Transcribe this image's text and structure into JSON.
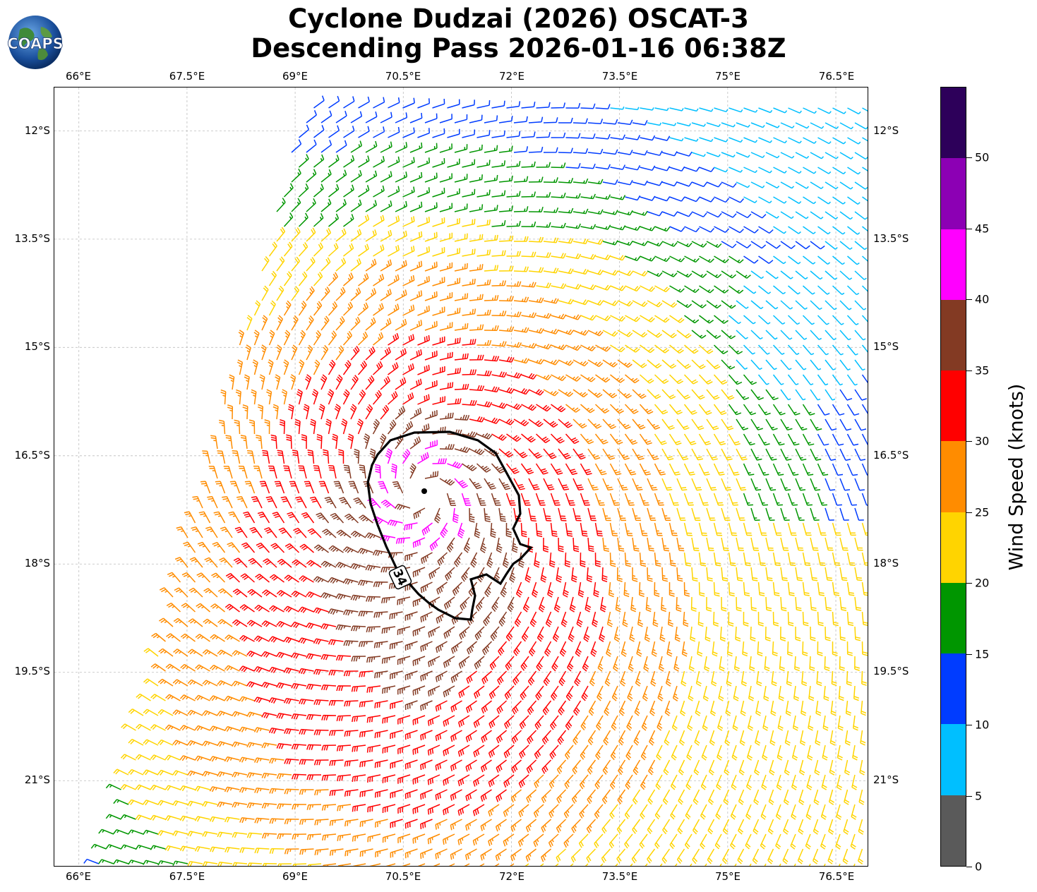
{
  "title": {
    "line1": "Cyclone Dudzai (2026) OSCAT-3",
    "line2": "Descending Pass 2026-01-16 06:38Z"
  },
  "logo": {
    "text": "COAPS",
    "icon": "globe-logo"
  },
  "axes": {
    "lon_ticks": [
      "66°E",
      "67.5°E",
      "69°E",
      "70.5°E",
      "72°E",
      "73.5°E",
      "75°E",
      "76.5°E"
    ],
    "lat_ticks": [
      "12°S",
      "13.5°S",
      "15°S",
      "16.5°S",
      "18°S",
      "19.5°S",
      "21°S"
    ],
    "lon_range": [
      65.66,
      76.96
    ],
    "lat_range": [
      -11.4,
      -22.2
    ],
    "grid": true
  },
  "colorbar": {
    "label": "Wind Speed (knots)",
    "ticks": [
      "0",
      "5",
      "10",
      "15",
      "20",
      "25",
      "30",
      "35",
      "40",
      "45",
      "50"
    ],
    "colors": [
      "#5a5a5a",
      "#00bfff",
      "#003cff",
      "#009600",
      "#ffd400",
      "#ff8c00",
      "#ff0000",
      "#833a23",
      "#ff00ff",
      "#8c00b4",
      "#2d005a"
    ]
  },
  "contour": {
    "label": "34",
    "value_knots": 34
  },
  "chart_data": {
    "type": "wind-barb-map",
    "storm_center": {
      "lon": 70.77,
      "lat": -17.0
    },
    "regions": [
      {
        "area": "far north of swath",
        "speed_knots": 12,
        "color": "blue"
      },
      {
        "area": "northeast cyan pocket near 75.5°E 14.5°S",
        "speed_knots": 8,
        "color": "cyan"
      },
      {
        "area": "green ring around 15°S",
        "speed_knots": 17,
        "color": "green"
      },
      {
        "area": "yellow ring near 15.8°S",
        "speed_knots": 22,
        "color": "yellow"
      },
      {
        "area": "orange band south/southwest",
        "speed_knots": 27,
        "color": "orange"
      },
      {
        "area": "red ring near center",
        "speed_knots": 32,
        "color": "red"
      },
      {
        "area": "core inside 34-kt contour",
        "speed_knots": 38,
        "color": "brown"
      },
      {
        "area": "eyewall max",
        "speed_knots": 43,
        "color": "magenta"
      }
    ]
  }
}
